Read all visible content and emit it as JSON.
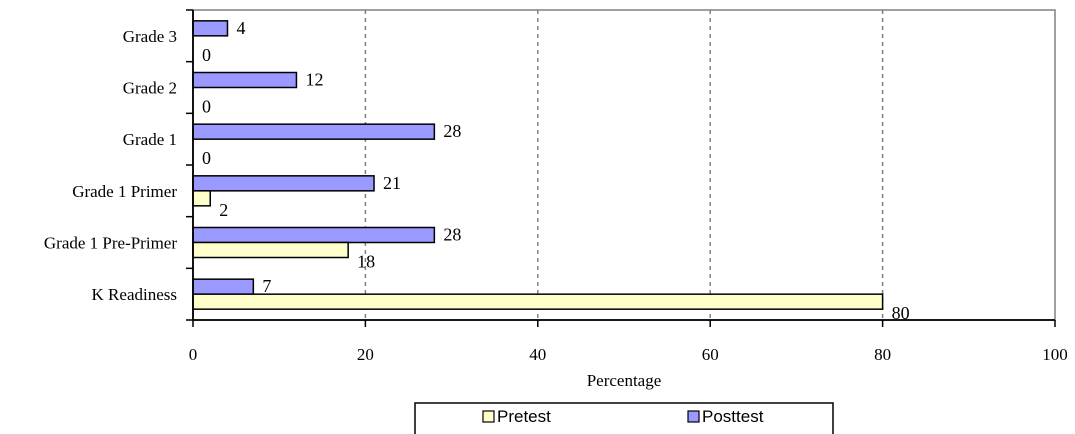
{
  "chart_data": {
    "type": "bar",
    "orientation": "horizontal",
    "categories": [
      "K Readiness",
      "Grade 1 Pre-Primer",
      "Grade 1 Primer",
      "Grade 1",
      "Grade 2",
      "Grade 3"
    ],
    "series": [
      {
        "name": "Pretest",
        "values": [
          80,
          18,
          2,
          0,
          0,
          0
        ],
        "color": "#ffffcc"
      },
      {
        "name": "Posttest",
        "values": [
          7,
          28,
          21,
          28,
          12,
          4
        ],
        "color": "#9999ff"
      }
    ],
    "xlabel": "Percentage",
    "ylabel": "",
    "xlim": [
      0,
      100
    ],
    "xticks": [
      0,
      20,
      40,
      60,
      80,
      100
    ],
    "grid": "vertical dashed",
    "legend": "bottom"
  }
}
